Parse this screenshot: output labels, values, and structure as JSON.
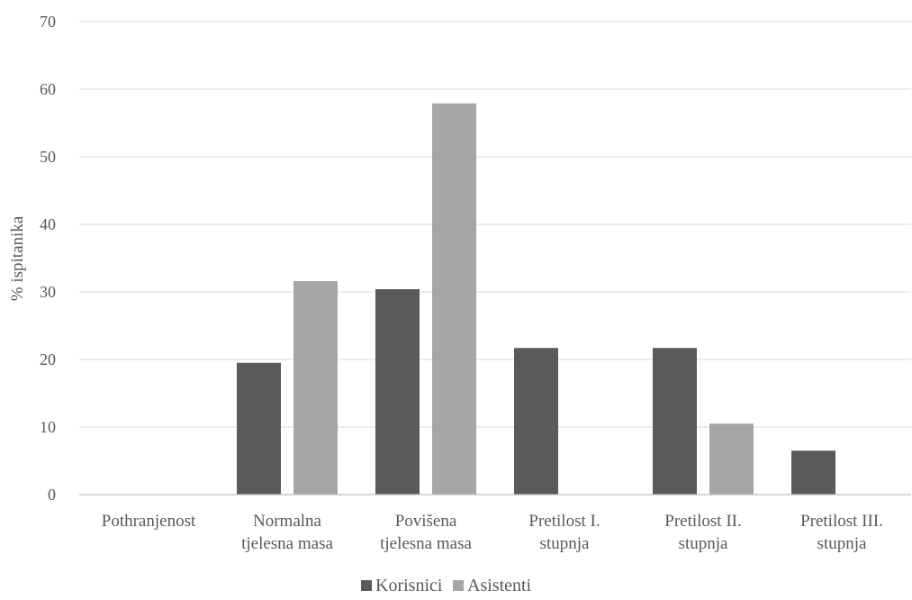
{
  "chart_data": {
    "type": "bar",
    "categories": [
      [
        "Pothranjenost"
      ],
      [
        "Normalna",
        "tjelesna masa"
      ],
      [
        "Povišena",
        "tjelesna masa"
      ],
      [
        "Pretilost I.",
        "stupnja"
      ],
      [
        "Pretilost II.",
        "stupnja"
      ],
      [
        "Pretilost III.",
        "stupnja"
      ]
    ],
    "series": [
      {
        "name": "Korisnici",
        "values": [
          0,
          19.5,
          30.4,
          21.7,
          21.7,
          6.5
        ],
        "color": "#5a5a5a"
      },
      {
        "name": "Asistenti",
        "values": [
          0,
          31.6,
          57.9,
          0,
          10.5,
          0
        ],
        "color": "#a6a6a6"
      }
    ],
    "ylabel": "% ispitanika",
    "xlabel": "",
    "title": "",
    "ylim": [
      0,
      70
    ],
    "yticks": [
      0,
      10,
      20,
      30,
      40,
      50,
      60,
      70
    ],
    "grid": true,
    "legend": "bottom"
  }
}
